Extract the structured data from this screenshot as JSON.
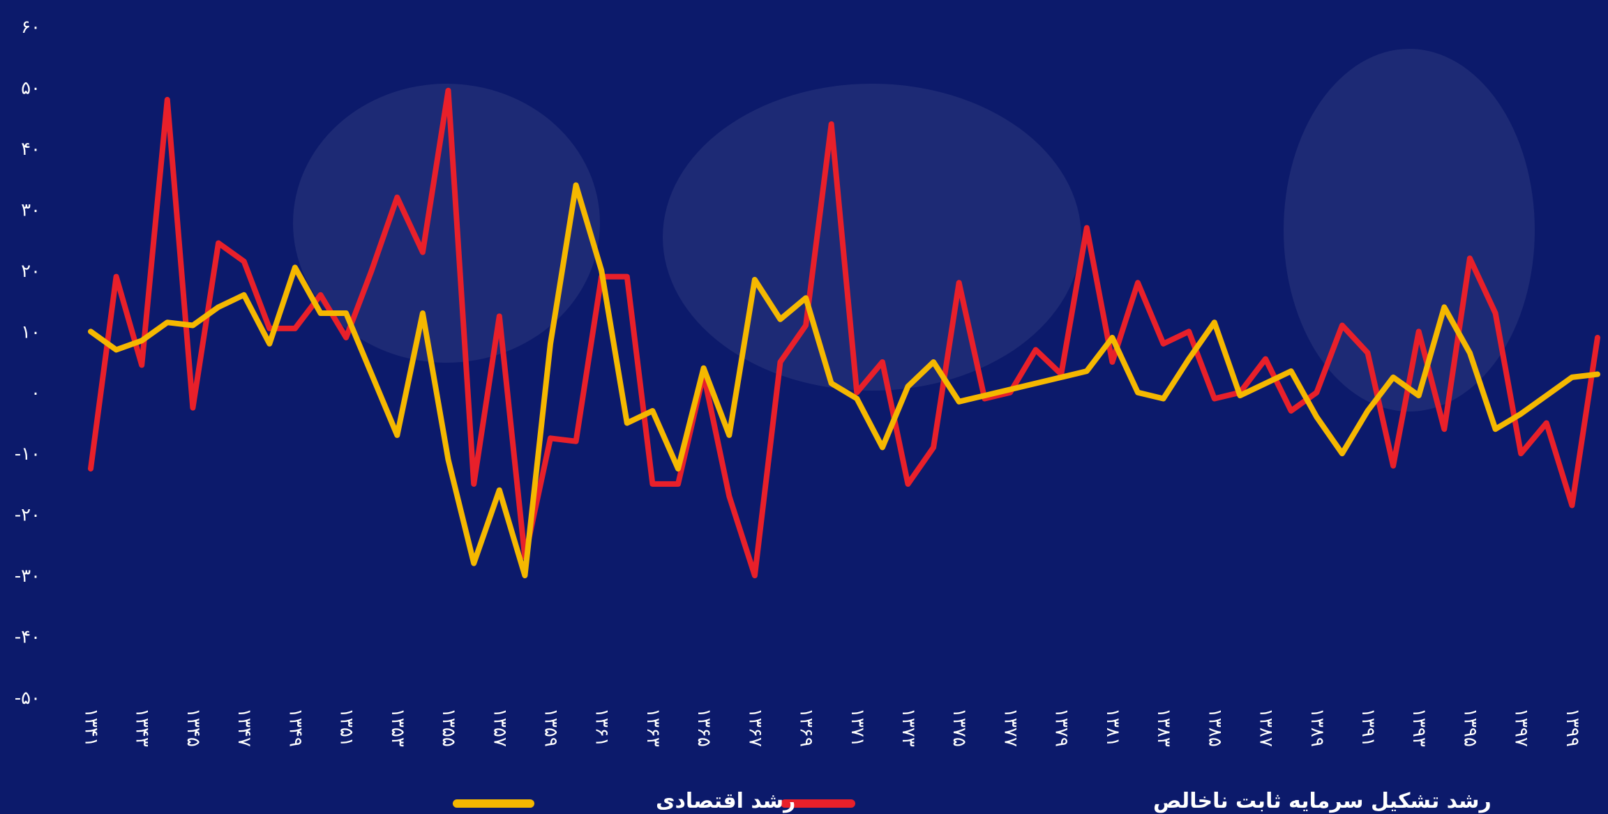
{
  "chart_data": {
    "type": "line",
    "title": "",
    "xlabel": "",
    "ylabel": "",
    "ylim": [
      -50,
      60
    ],
    "yticks": [
      "۶۰",
      "۵۰",
      "۴۰",
      "۳۰",
      "۲۰",
      "۱۰",
      "۰",
      "-۱۰",
      "-۲۰",
      "-۳۰",
      "-۴۰",
      "-۵۰"
    ],
    "ytick_values": [
      60,
      50,
      40,
      30,
      20,
      10,
      0,
      -10,
      -20,
      -30,
      -40,
      -50
    ],
    "x": [
      1341,
      1342,
      1343,
      1344,
      1345,
      1346,
      1347,
      1348,
      1349,
      1350,
      1351,
      1352,
      1353,
      1354,
      1355,
      1356,
      1357,
      1358,
      1359,
      1360,
      1361,
      1362,
      1363,
      1364,
      1365,
      1366,
      1367,
      1368,
      1369,
      1370,
      1371,
      1372,
      1373,
      1374,
      1375,
      1376,
      1377,
      1378,
      1379,
      1380,
      1381,
      1382,
      1383,
      1384,
      1385,
      1386,
      1387,
      1388,
      1389,
      1390,
      1391,
      1392,
      1393,
      1394,
      1395,
      1396,
      1397,
      1398,
      1399,
      1400
    ],
    "xtick_labels": [
      "۱۳۴۱",
      "۱۳۴۳",
      "۱۳۴۵",
      "۱۳۴۷",
      "۱۳۴۹",
      "۱۳۵۱",
      "۱۳۵۳",
      "۱۳۵۵",
      "۱۳۵۷",
      "۱۳۵۹",
      "۱۳۶۱",
      "۱۳۶۳",
      "۱۳۶۵",
      "۱۳۶۷",
      "۱۳۶۹",
      "۱۳۷۱",
      "۱۳۷۳",
      "۱۳۷۵",
      "۱۳۷۷",
      "۱۳۷۹",
      "۱۳۸۱",
      "۱۳۸۳",
      "۱۳۸۵",
      "۱۳۸۷",
      "۱۳۸۹",
      "۱۳۹۱",
      "۱۳۹۳",
      "۱۳۹۵",
      "۱۳۹۷",
      "۱۳۹۹"
    ],
    "xtick_values": [
      1341,
      1343,
      1345,
      1347,
      1349,
      1351,
      1353,
      1355,
      1357,
      1359,
      1361,
      1363,
      1365,
      1367,
      1369,
      1371,
      1373,
      1375,
      1377,
      1379,
      1381,
      1383,
      1385,
      1387,
      1389,
      1391,
      1393,
      1395,
      1397,
      1399
    ],
    "grid": false,
    "legend_position": "bottom",
    "series": [
      {
        "name": "رشد تشکیل سرمایه ثابت ناخالص",
        "color": "#e8202a",
        "values": [
          -12.5,
          19,
          4.5,
          48,
          -2.5,
          24.5,
          21.5,
          10.5,
          10.5,
          16,
          9,
          20,
          32,
          23,
          49.5,
          -15,
          12.5,
          -27,
          -7.5,
          -8,
          19,
          19,
          -15,
          -15,
          3,
          -17,
          -30,
          5,
          11,
          44,
          0,
          5,
          -15,
          -9,
          18,
          -1,
          0,
          7,
          3,
          27,
          5,
          18,
          8,
          10,
          -1,
          0,
          5.5,
          -3,
          0,
          11,
          6.5,
          -12,
          10,
          -6,
          22,
          13,
          -10,
          -5,
          -18.5,
          9
        ]
      },
      {
        "name": "رشد اقتصادی",
        "color": "#f5b800",
        "values": [
          10,
          7,
          8.5,
          11.5,
          11,
          14,
          16,
          8,
          20.5,
          13,
          13,
          3,
          -7,
          13,
          -11,
          -28,
          -16,
          -30,
          8,
          34,
          20,
          -5,
          -3,
          -12.5,
          4,
          -7,
          18.5,
          12,
          15.5,
          1.5,
          -1,
          -9,
          1,
          5,
          -1.5,
          -0.5,
          0.5,
          1.5,
          2.5,
          3.5,
          9,
          0,
          -1,
          5.5,
          11.5,
          -0.5,
          1.5,
          3.5,
          -4,
          -10,
          -3,
          2.5,
          -0.5,
          14,
          6.5,
          -6,
          -3.5,
          -0.5,
          2.5,
          3
        ]
      }
    ]
  }
}
